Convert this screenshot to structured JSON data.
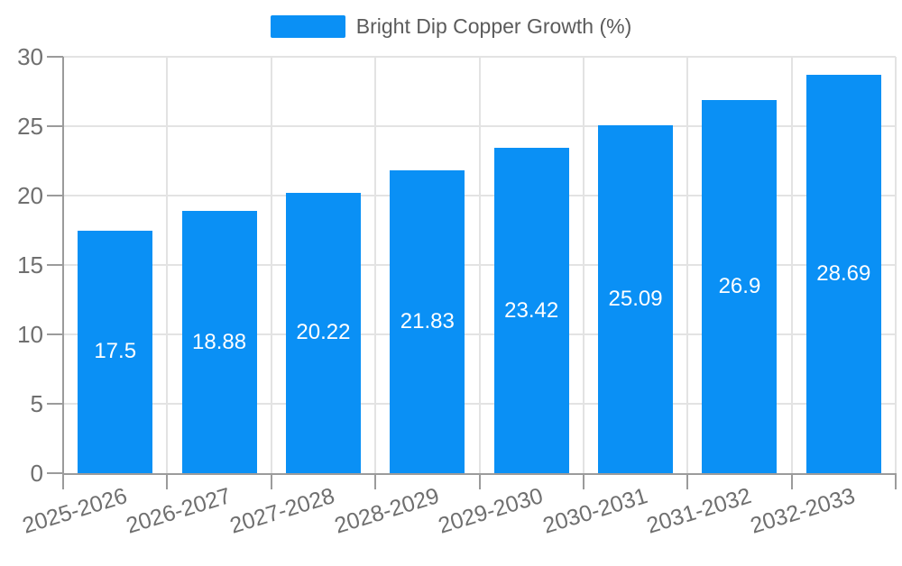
{
  "legend": {
    "label": "Bright Dip Copper Growth (%)"
  },
  "colors": {
    "bar": "#0a90f5",
    "grid": "#e3e3e3",
    "axis": "#9b9b9b",
    "axis_text": "#6f6f6f",
    "legend_text": "#5b5b5b",
    "value_text": "#ffffff",
    "background": "#ffffff"
  },
  "chart_data": {
    "type": "bar",
    "title": "",
    "legend_entries": [
      "Bright Dip Copper Growth (%)"
    ],
    "legend_position": "top-center",
    "categories": [
      "2025-2026",
      "2026-2027",
      "2027-2028",
      "2028-2029",
      "2029-2030",
      "2030-2031",
      "2031-2032",
      "2032-2033"
    ],
    "series": [
      {
        "name": "Bright Dip Copper Growth (%)",
        "values": [
          17.5,
          18.88,
          20.22,
          21.83,
          23.42,
          25.09,
          26.9,
          28.69
        ]
      }
    ],
    "value_labels": [
      "17.5",
      "18.88",
      "20.22",
      "21.83",
      "23.42",
      "25.09",
      "26.9",
      "28.69"
    ],
    "xlabel": "",
    "ylabel": "",
    "ylim": [
      0,
      30
    ],
    "yticks": [
      0,
      5,
      10,
      15,
      20,
      25,
      30
    ],
    "grid": true,
    "x_tick_rotation_deg": -17
  }
}
